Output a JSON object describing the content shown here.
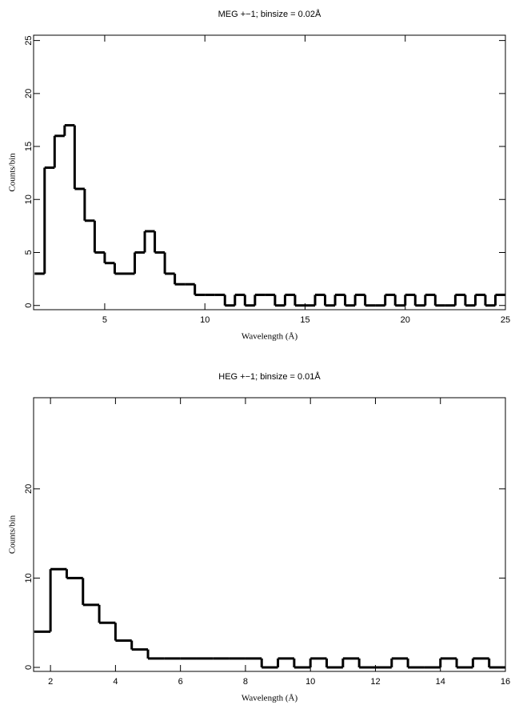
{
  "chart_data": [
    {
      "type": "histogram",
      "title": "MEG +−1; binsize = 0.02Å",
      "xlabel": "Wavelength (Å)",
      "ylabel": "Counts/bin",
      "bins": [
        1.5,
        2,
        2.5,
        3,
        3.5,
        4,
        4.5,
        5,
        5.5,
        6,
        6.5,
        7,
        7.5,
        8,
        8.5,
        9,
        9.5,
        10,
        10.5,
        11,
        11.5,
        12,
        12.5,
        13,
        13.5,
        14,
        14.5,
        15,
        15.5,
        16,
        16.5,
        17,
        17.5,
        18,
        18.5,
        19,
        19.5,
        20,
        20.5,
        21,
        21.5,
        22,
        22.5,
        23,
        23.5,
        24,
        24.5,
        25
      ],
      "counts": [
        3,
        13,
        16,
        17,
        11,
        8,
        5,
        4,
        3,
        3,
        5,
        7,
        5,
        3,
        2,
        2,
        1,
        1,
        1,
        0,
        1,
        0,
        1,
        1,
        0,
        1,
        0,
        0,
        1,
        0,
        1,
        0,
        1,
        0,
        0,
        1,
        0,
        1,
        0,
        1,
        0,
        0,
        1,
        0,
        1,
        0,
        1
      ],
      "color": "#000000",
      "xlim": [
        1.45,
        25
      ],
      "ylim": [
        -0.4,
        25.5
      ],
      "xticks": [
        5,
        10,
        15,
        20,
        25
      ],
      "yticks": [
        0,
        5,
        10,
        15,
        20,
        25
      ]
    },
    {
      "type": "histogram",
      "title": "HEG +−1; binsize = 0.01Å",
      "xlabel": "Wavelength (Å)",
      "ylabel": "Counts/bin",
      "bins": [
        1.5,
        2,
        2.5,
        3,
        3.5,
        4,
        4.5,
        5,
        5.5,
        6,
        6.5,
        7,
        7.5,
        8,
        8.5,
        9,
        9.5,
        10,
        10.5,
        11,
        11.5,
        12,
        12.5,
        13,
        13.5,
        14,
        14.5,
        15,
        15.5,
        16
      ],
      "counts": [
        4,
        11,
        10,
        7,
        5,
        3,
        2,
        1,
        1,
        1,
        1,
        1,
        1,
        1,
        0,
        1,
        0,
        1,
        0,
        1,
        0,
        0,
        1,
        0,
        0,
        1,
        0,
        1,
        0
      ],
      "color": "#000000",
      "xlim": [
        1.48,
        16
      ],
      "ylim": [
        -0.45,
        30.2
      ],
      "xticks": [
        2,
        4,
        6,
        8,
        10,
        12,
        14,
        16
      ],
      "yticks": [
        0,
        10,
        20
      ]
    }
  ]
}
